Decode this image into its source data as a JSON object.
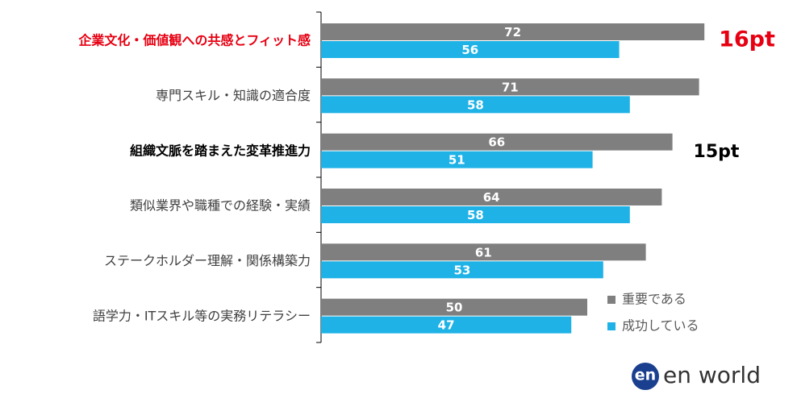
{
  "chart_data": {
    "type": "bar",
    "orientation": "horizontal",
    "categories": [
      "企業文化・価値観への共感とフィット感",
      "専門スキル・知識の適合度",
      "組織文脈を踏まえた変革推進力",
      "類似業界や職種での経験・実績",
      "ステークホルダー理解・関係構築力",
      "語学力・ITスキル等の実務リテラシー"
    ],
    "category_colors": [
      "#e60012",
      "#404040",
      "#000000",
      "#404040",
      "#404040",
      "#404040"
    ],
    "category_bold": [
      true,
      false,
      true,
      false,
      false,
      false
    ],
    "series": [
      {
        "name": "重要である",
        "color": "#7f7f7f",
        "values": [
          72,
          71,
          66,
          64,
          61,
          50
        ]
      },
      {
        "name": "成功している",
        "color": "#1fb2e6",
        "values": [
          56,
          58,
          51,
          58,
          53,
          47
        ]
      }
    ],
    "xlim": [
      0,
      90
    ],
    "legend": "bottom-right",
    "annotations": [
      {
        "text": "16pt",
        "color": "#e60012"
      },
      {
        "text": "15pt",
        "color": "#000000"
      }
    ]
  },
  "logo": {
    "mark": "en",
    "text": "en world"
  }
}
